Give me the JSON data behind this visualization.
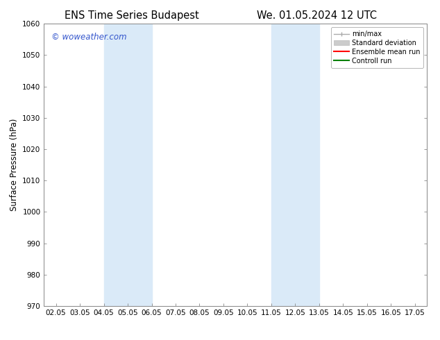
{
  "title_left": "ENS Time Series Budapest",
  "title_right": "We. 01.05.2024 12 UTC",
  "ylabel": "Surface Pressure (hPa)",
  "ylim": [
    970,
    1060
  ],
  "yticks": [
    970,
    980,
    990,
    1000,
    1010,
    1020,
    1030,
    1040,
    1050,
    1060
  ],
  "xlim": [
    1.5,
    17.5
  ],
  "xtick_labels": [
    "02.05",
    "03.05",
    "04.05",
    "05.05",
    "06.05",
    "07.05",
    "08.05",
    "09.05",
    "10.05",
    "11.05",
    "12.05",
    "13.05",
    "14.05",
    "15.05",
    "16.05",
    "17.05"
  ],
  "xtick_positions": [
    2,
    3,
    4,
    5,
    6,
    7,
    8,
    9,
    10,
    11,
    12,
    13,
    14,
    15,
    16,
    17
  ],
  "shaded_bands": [
    {
      "xmin": 4.0,
      "xmax": 6.0,
      "color": "#daeaf8"
    },
    {
      "xmin": 11.0,
      "xmax": 13.0,
      "color": "#daeaf8"
    }
  ],
  "watermark_text": "© woweather.com",
  "watermark_color": "#3355cc",
  "legend_entries": [
    {
      "label": "min/max",
      "color": "#aaaaaa",
      "lw": 1.0
    },
    {
      "label": "Standard deviation",
      "color": "#cccccc",
      "lw": 6
    },
    {
      "label": "Ensemble mean run",
      "color": "red",
      "lw": 1.5
    },
    {
      "label": "Controll run",
      "color": "green",
      "lw": 1.5
    }
  ],
  "bg_color": "#ffffff",
  "title_fontsize": 10.5,
  "label_fontsize": 8.5,
  "tick_fontsize": 7.5,
  "watermark_fontsize": 8.5
}
